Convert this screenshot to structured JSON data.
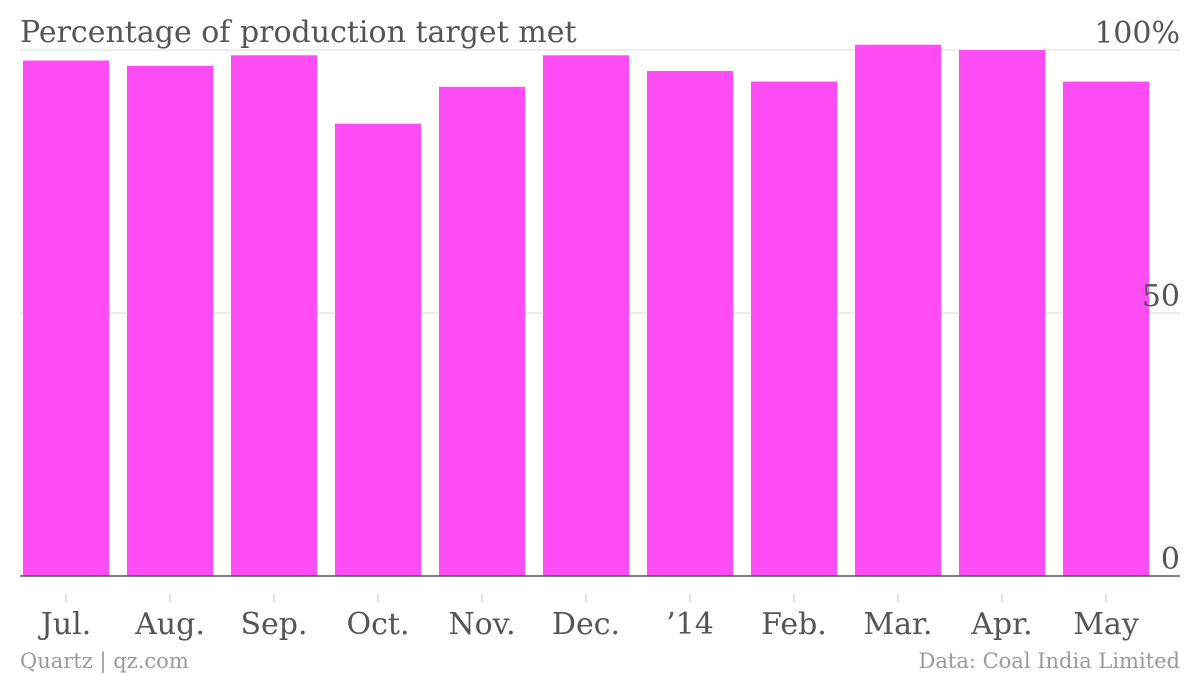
{
  "chart_data": {
    "type": "bar",
    "title": "Percentage of production target met",
    "categories": [
      "Jul.",
      "Aug.",
      "Sep.",
      "Oct.",
      "Nov.",
      "Dec.",
      "’14",
      "Feb.",
      "Mar.",
      "Apr.",
      "May"
    ],
    "values": [
      98,
      97,
      99,
      86,
      93,
      99,
      96,
      94,
      101,
      100,
      94
    ],
    "ylim": [
      0,
      100
    ],
    "yticks": [
      0,
      50,
      100
    ],
    "ytick_labels": [
      "0",
      "50",
      "100%"
    ],
    "xlabel": "",
    "ylabel": "",
    "grid": true,
    "bar_color": "#ff4cf5",
    "axis_color": "#555555",
    "grid_color": "#e6e6e6"
  },
  "footer": {
    "source_left": "Quartz | qz.com",
    "source_right": "Data: Coal India Limited"
  }
}
